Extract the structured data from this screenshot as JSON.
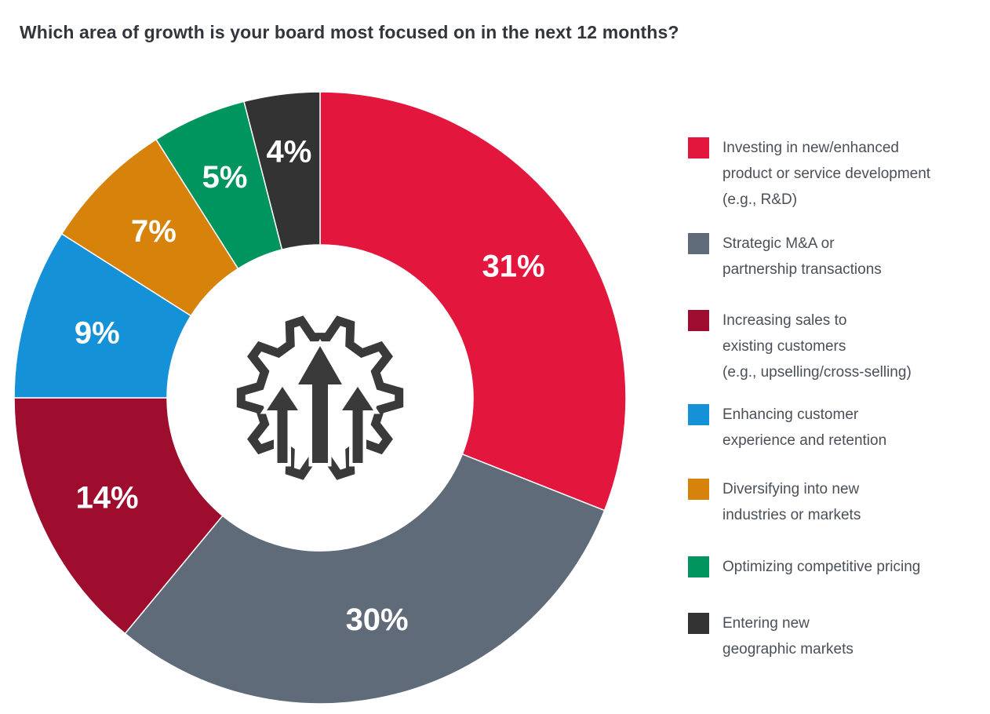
{
  "chart_data": {
    "type": "pie",
    "variant": "donut",
    "title": "Which area of growth is your board most focused on in the next 12 months?",
    "unit": "percent",
    "total": 100,
    "direction": "clockwise",
    "start_angle_deg": 0,
    "legend_position": "right",
    "center_icon": "gear-growth-arrows-icon",
    "slices": [
      {
        "key": "product-development",
        "value": 31,
        "value_label": "31%",
        "color": "#E3173E",
        "label": "Investing in new/enhanced product or service development (e.g., R&D)",
        "legend_lines": [
          "Investing in new/enhanced",
          "product or service development",
          "(e.g., R&D)"
        ]
      },
      {
        "key": "ma-partnerships",
        "value": 30,
        "value_label": "30%",
        "color": "#5F6B79",
        "label": "Strategic M&A or partnership transactions",
        "legend_lines": [
          "Strategic M&A or",
          "partnership transactions"
        ]
      },
      {
        "key": "existing-customer-sales",
        "value": 14,
        "value_label": "14%",
        "color": "#9E0C2E",
        "label": "Increasing sales to existing customers (e.g., upselling/cross-selling)",
        "legend_lines": [
          "Increasing sales to",
          "existing customers",
          "(e.g., upselling/cross-selling)"
        ]
      },
      {
        "key": "customer-experience",
        "value": 9,
        "value_label": "9%",
        "color": "#1591D8",
        "label": "Enhancing customer experience and retention",
        "legend_lines": [
          "Enhancing customer",
          "experience and retention"
        ]
      },
      {
        "key": "diversifying",
        "value": 7,
        "value_label": "7%",
        "color": "#D6820B",
        "label": "Diversifying into new industries or markets",
        "legend_lines": [
          "Diversifying into new",
          "industries or markets"
        ]
      },
      {
        "key": "competitive-pricing",
        "value": 5,
        "value_label": "5%",
        "color": "#00945E",
        "label": "Optimizing competitive pricing",
        "legend_lines": [
          "Optimizing competitive pricing"
        ]
      },
      {
        "key": "geographic-markets",
        "value": 4,
        "value_label": "4%",
        "color": "#333333",
        "label": "Entering new geographic markets",
        "legend_lines": [
          "Entering new",
          "geographic markets"
        ]
      }
    ]
  },
  "colors": {
    "background": "#FFFFFF",
    "title_text": "#32363B",
    "legend_text": "#4A5058",
    "slice_value_text": "#FFFFFF",
    "slice_separator": "#FFFFFF",
    "center_icon": "#3A3A3A"
  }
}
